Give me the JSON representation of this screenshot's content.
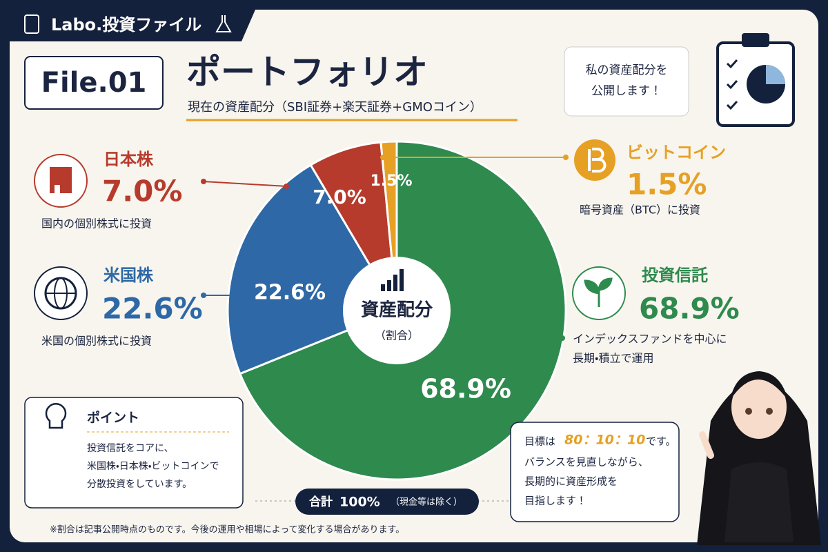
{
  "header": {
    "tag": "Labo.投資ファイル",
    "file": "File.01",
    "title": "ポートフォリオ",
    "subtitle": "現在の資産配分（SBI証券+楽天証券+GMOコイン）",
    "bubble": [
      "私の資産配分を",
      "公開します！"
    ]
  },
  "chart_data": {
    "type": "pie",
    "categories": [
      "投資信託",
      "米国株",
      "日本株",
      "ビットコイン"
    ],
    "values": [
      68.9,
      22.6,
      7.0,
      1.5
    ],
    "value_labels": [
      "68.9%",
      "22.6%",
      "7.0%",
      "1.5%"
    ],
    "colors": [
      "#2f8a4e",
      "#2e68a6",
      "#b63b2d",
      "#e6a024"
    ],
    "center_title": "資産配分",
    "center_subtitle": "（割合）"
  },
  "descriptions": [
    [
      "インデックスファンドを中心に",
      "長期・積立で運用"
    ],
    [
      "米国の個別株式に投資"
    ],
    [
      "国内の個別株式に投資"
    ],
    [
      "暗号資産（BTC）に投資"
    ]
  ],
  "point": {
    "title": "ポイント",
    "lines": [
      "投資信託をコアに、",
      "米国株・日本株・ビットコインで",
      "分散投資をしています。"
    ]
  },
  "total": {
    "label": "合計",
    "value": "100%",
    "note": "（現金等は除く）"
  },
  "message": {
    "prefix": "目標は",
    "target": "80：10：10",
    "suffix": "です。",
    "lines": [
      "バランスを見直しながら、",
      "長期的に資産形成を",
      "目指します！"
    ]
  },
  "footnote": "※割合は記事公開時点のものです。今後の運用や相場によって変化する場合があります。"
}
